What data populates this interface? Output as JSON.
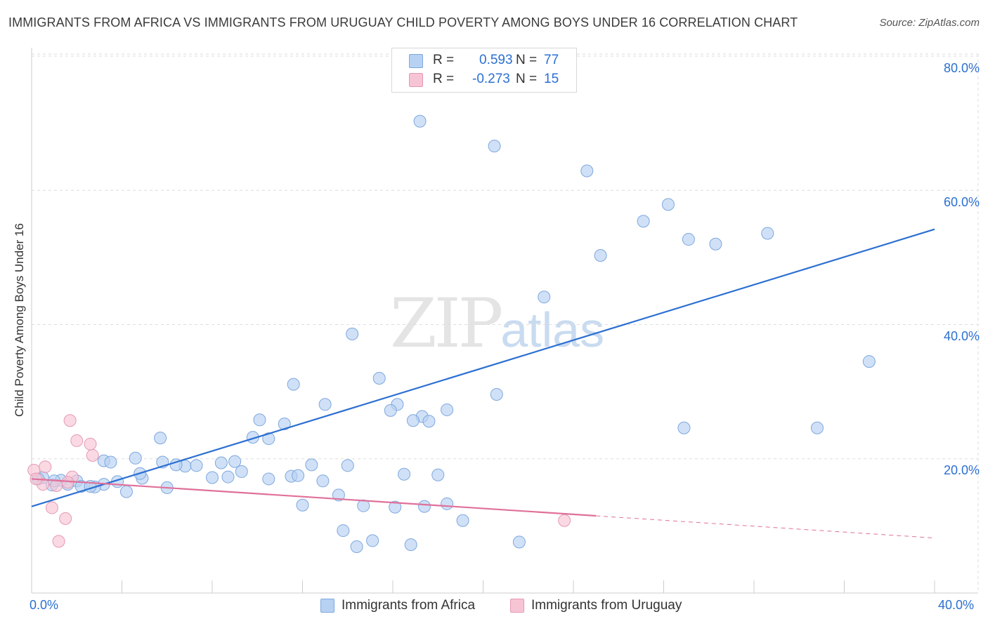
{
  "header": {
    "title": "IMMIGRANTS FROM AFRICA VS IMMIGRANTS FROM URUGUAY CHILD POVERTY AMONG BOYS UNDER 16 CORRELATION CHART",
    "source": "Source: ZipAtlas.com"
  },
  "watermark": {
    "zip": "ZIP",
    "atlas": "atlas"
  },
  "legend": {
    "africa": {
      "r_label": "R =",
      "r_value": "0.593",
      "n_label": "N =",
      "n_value": "77"
    },
    "uruguay": {
      "r_label": "R =",
      "r_value": "-0.273",
      "n_label": "N =",
      "n_value": "15"
    }
  },
  "colors": {
    "africa_fill": "#b7d1f3",
    "africa_stroke": "#7ea7de",
    "africa_line": "#2b6fd1",
    "uruguay_fill": "#f7c4d4",
    "uruguay_stroke": "#e59ab4",
    "uruguay_line": "#e0709a",
    "grid": "#dddddd",
    "tick_text": "#2b6fd1"
  },
  "axes": {
    "ylabel": "Child Poverty Among Boys Under 16",
    "x_tick_left": "0.0%",
    "x_tick_right": "40.0%",
    "y_ticks": [
      "80.0%",
      "60.0%",
      "40.0%",
      "20.0%"
    ]
  },
  "bottom_legend": {
    "africa": "Immigrants from Africa",
    "uruguay": "Immigrants from Uruguay"
  },
  "chart_data": {
    "type": "scatter",
    "title": "IMMIGRANTS FROM AFRICA VS IMMIGRANTS FROM URUGUAY CHILD POVERTY AMONG BOYS UNDER 16 CORRELATION CHART",
    "xlabel": "",
    "ylabel": "Child Poverty Among Boys Under 16",
    "xlim": [
      0,
      40
    ],
    "ylim": [
      0,
      80
    ],
    "grid": true,
    "legend_position": "top-center",
    "series": [
      {
        "name": "Immigrants from Africa",
        "x": [
          17.2,
          20.5,
          24.6,
          28.2,
          27.1,
          32.6,
          29.1,
          30.3,
          25.2,
          22.7,
          37.1,
          14.2,
          34.8,
          28.9,
          15.4,
          16.2,
          20.6,
          15.9,
          11.6,
          17.3,
          18.4,
          13.0,
          16.9,
          17.6,
          10.1,
          11.2,
          10.5,
          5.7,
          3.2,
          6.8,
          8.4,
          9.0,
          14.0,
          9.8,
          12.4,
          16.5,
          18.0,
          18.4,
          2.0,
          3.2,
          4.9,
          6.0,
          7.3,
          4.8,
          5.8,
          6.4,
          8.7,
          10.5,
          11.5,
          12.9,
          13.6,
          14.7,
          16.1,
          17.4,
          11.8,
          8.0,
          9.3,
          2.8,
          3.5,
          1.3,
          1.6,
          2.2,
          0.9,
          0.5,
          0.3,
          4.2,
          3.8,
          2.6,
          12.0,
          13.8,
          15.1,
          16.8,
          19.1,
          21.6,
          14.4,
          1.0,
          4.6
        ],
        "y": [
          70.3,
          66.6,
          62.9,
          57.9,
          55.4,
          53.6,
          52.7,
          52.0,
          50.3,
          44.1,
          34.5,
          38.6,
          24.6,
          24.6,
          32.0,
          28.1,
          29.6,
          27.2,
          31.1,
          26.3,
          27.3,
          28.1,
          25.7,
          25.6,
          25.8,
          25.2,
          23.0,
          23.1,
          16.2,
          18.9,
          19.4,
          19.6,
          19.0,
          23.2,
          19.1,
          17.7,
          17.6,
          13.3,
          16.7,
          19.7,
          17.1,
          15.7,
          19.0,
          17.8,
          19.5,
          19.1,
          17.3,
          17.0,
          17.4,
          16.7,
          14.6,
          13.0,
          12.8,
          12.9,
          17.5,
          17.2,
          18.1,
          15.8,
          19.5,
          16.8,
          16.2,
          15.9,
          16.1,
          17.2,
          17.0,
          15.1,
          16.6,
          15.9,
          13.1,
          9.3,
          7.8,
          7.2,
          10.8,
          7.6,
          6.9,
          16.7,
          20.1
        ]
      },
      {
        "name": "Immigrants from Uruguay",
        "x": [
          0.1,
          0.6,
          1.7,
          2.6,
          2.0,
          2.7,
          1.8,
          1.6,
          1.1,
          0.9,
          1.5,
          1.2,
          0.5,
          23.6,
          0.2
        ],
        "y": [
          18.3,
          18.8,
          25.7,
          22.2,
          22.7,
          20.5,
          17.3,
          16.5,
          16.0,
          12.7,
          11.1,
          7.7,
          16.2,
          10.8,
          17.0
        ]
      }
    ],
    "trendlines": [
      {
        "series": "Immigrants from Africa",
        "x": [
          0,
          40
        ],
        "y": [
          12.9,
          54.2
        ],
        "style": "solid"
      },
      {
        "series": "Immigrants from Uruguay",
        "x": [
          0,
          25
        ],
        "y": [
          17.0,
          11.5
        ],
        "style": "solid"
      },
      {
        "series": "Immigrants from Uruguay",
        "x": [
          25,
          40
        ],
        "y": [
          11.5,
          8.2
        ],
        "style": "dashed"
      }
    ]
  }
}
